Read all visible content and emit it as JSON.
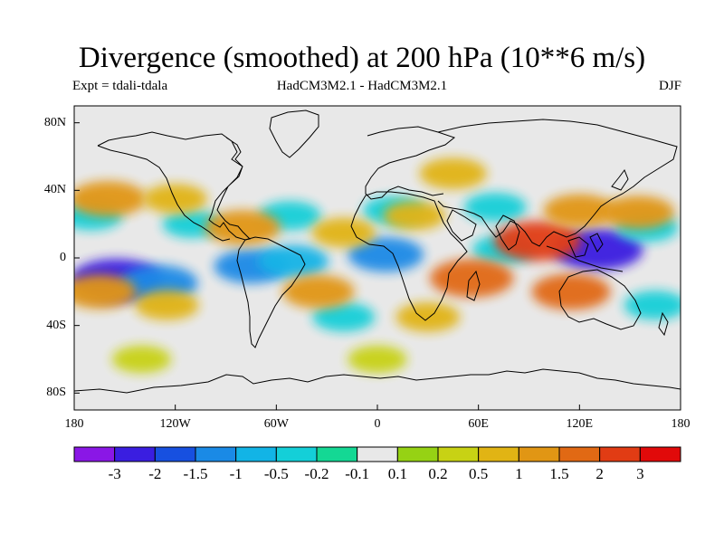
{
  "title": "Divergence (smoothed) at 200 hPa (10**6 m/s)",
  "expt": "Expt = tdali-tdala",
  "model": "HadCM3M2.1 - HadCM3M2.1",
  "season": "DJF",
  "y_ticks": [
    {
      "lat": 80,
      "label": "80N"
    },
    {
      "lat": 40,
      "label": "40N"
    },
    {
      "lat": 0,
      "label": "0"
    },
    {
      "lat": -40,
      "label": "40S"
    },
    {
      "lat": -80,
      "label": "80S"
    }
  ],
  "x_ticks": [
    {
      "lon": -180,
      "label": "180"
    },
    {
      "lon": -120,
      "label": "120W"
    },
    {
      "lon": -60,
      "label": "60W"
    },
    {
      "lon": 0,
      "label": "0"
    },
    {
      "lon": 60,
      "label": "60E"
    },
    {
      "lon": 120,
      "label": "120E"
    },
    {
      "lon": 180,
      "label": "180"
    }
  ],
  "colorbar": {
    "colors": [
      "#8a17e6",
      "#3a1ee0",
      "#1750e0",
      "#1a8ae6",
      "#12b4e6",
      "#14cfd8",
      "#14d894",
      "#e8e8e8",
      "#96d214",
      "#c8d214",
      "#e1b414",
      "#e19614",
      "#e16914",
      "#e13c14",
      "#e10a0a"
    ],
    "labels": [
      "-3",
      "-2",
      "-1.5",
      "-1",
      "-0.5",
      "-0.2",
      "-0.1",
      "0.1",
      "0.2",
      "0.5",
      "1",
      "1.5",
      "2",
      "3"
    ]
  },
  "chart_data": {
    "type": "heatmap",
    "projection": "cylindrical equidistant",
    "field": "200 hPa divergence difference",
    "xlim": [
      -180,
      180
    ],
    "ylim": [
      -90,
      90
    ],
    "levels": [
      -3,
      -2,
      -1.5,
      -1,
      -0.5,
      -0.2,
      -0.1,
      0.1,
      0.2,
      0.5,
      1,
      1.5,
      2,
      3
    ],
    "features": [
      {
        "lon": -155,
        "lat": -13,
        "value": -2.3
      },
      {
        "lon": -130,
        "lat": -15,
        "value": -1.5
      },
      {
        "lon": -170,
        "lat": 25,
        "value": -0.5
      },
      {
        "lon": -110,
        "lat": 20,
        "value": -0.3
      },
      {
        "lon": -75,
        "lat": -5,
        "value": -1.2
      },
      {
        "lon": -50,
        "lat": -2,
        "value": -1.0
      },
      {
        "lon": -52,
        "lat": 25,
        "value": -0.5
      },
      {
        "lon": 5,
        "lat": 2,
        "value": -1.3
      },
      {
        "lon": 10,
        "lat": 28,
        "value": -0.5
      },
      {
        "lon": 70,
        "lat": 30,
        "value": -0.5
      },
      {
        "lon": 75,
        "lat": 5,
        "value": -0.5
      },
      {
        "lon": 131,
        "lat": 5,
        "value": -2.2
      },
      {
        "lon": 160,
        "lat": 18,
        "value": -0.5
      },
      {
        "lon": 165,
        "lat": -28,
        "value": -0.5
      },
      {
        "lon": -20,
        "lat": -35,
        "value": -0.5
      },
      {
        "lon": -160,
        "lat": 35,
        "value": 1.4
      },
      {
        "lon": -120,
        "lat": 35,
        "value": 0.6
      },
      {
        "lon": -80,
        "lat": 18,
        "value": 1.3
      },
      {
        "lon": -165,
        "lat": -20,
        "value": 1.2
      },
      {
        "lon": -125,
        "lat": -28,
        "value": 0.6
      },
      {
        "lon": -35,
        "lat": -20,
        "value": 1.1
      },
      {
        "lon": -20,
        "lat": 15,
        "value": 0.6
      },
      {
        "lon": 22,
        "lat": 25,
        "value": 0.5
      },
      {
        "lon": 45,
        "lat": 50,
        "value": 0.8
      },
      {
        "lon": 56,
        "lat": -12,
        "value": 1.8
      },
      {
        "lon": 95,
        "lat": 10,
        "value": 2.0
      },
      {
        "lon": 115,
        "lat": -20,
        "value": 1.5
      },
      {
        "lon": 120,
        "lat": 28,
        "value": 1.1
      },
      {
        "lon": 155,
        "lat": 27,
        "value": 1.1
      },
      {
        "lon": 30,
        "lat": -35,
        "value": 0.6
      },
      {
        "lon": -140,
        "lat": -60,
        "value": 0.3
      },
      {
        "lon": 0,
        "lat": -60,
        "value": 0.3
      }
    ]
  }
}
